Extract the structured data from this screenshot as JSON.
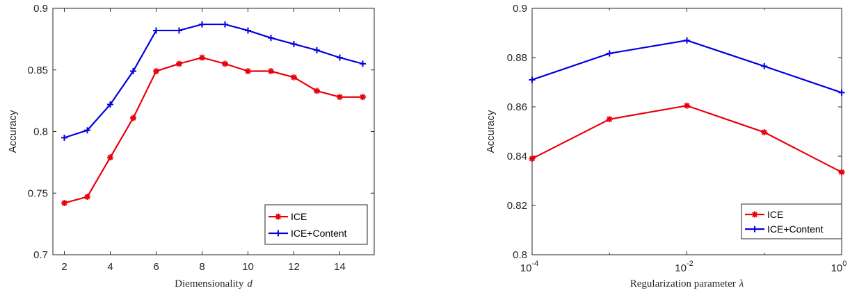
{
  "chart_data": [
    {
      "type": "line",
      "title": "",
      "xlabel": "Diemensionality",
      "xlabel_var": "d",
      "ylabel": "Accuracy",
      "x": [
        2,
        3,
        4,
        5,
        6,
        7,
        8,
        9,
        10,
        11,
        12,
        13,
        14,
        15
      ],
      "xlim": [
        1.5,
        15.5
      ],
      "ylim": [
        0.7,
        0.9
      ],
      "xticks": [
        2,
        4,
        6,
        8,
        10,
        12,
        14
      ],
      "yticks": [
        "0.7",
        "0.75",
        "0.8",
        "0.85",
        "0.9"
      ],
      "legend_position": "bottom-right",
      "grid": false,
      "series": [
        {
          "name": "ICE",
          "color": "#e8000b",
          "marker": "asterisk",
          "values": [
            0.742,
            0.747,
            0.779,
            0.811,
            0.849,
            0.855,
            0.86,
            0.855,
            0.849,
            0.849,
            0.844,
            0.833,
            0.828,
            0.828
          ]
        },
        {
          "name": "ICE+Content",
          "color": "#0000e0",
          "marker": "plus",
          "values": [
            0.795,
            0.801,
            0.822,
            0.849,
            0.882,
            0.882,
            0.887,
            0.887,
            0.882,
            0.876,
            0.871,
            0.866,
            0.86,
            0.855
          ]
        }
      ]
    },
    {
      "type": "line",
      "title": "",
      "xlabel": "Regularization parameter",
      "xlabel_var": "λ",
      "ylabel": "Accuracy",
      "xscale": "log",
      "x": [
        0.0001,
        0.001,
        0.01,
        0.1,
        1
      ],
      "xlim": [
        0.0001,
        1
      ],
      "ylim": [
        0.8,
        0.9
      ],
      "xticks": [
        {
          "base": "10",
          "exp": "-4"
        },
        {
          "base": "10",
          "exp": "-2"
        },
        {
          "base": "10",
          "exp": "0"
        }
      ],
      "yticks": [
        "0.8",
        "0.82",
        "0.84",
        "0.86",
        "0.88",
        "0.9"
      ],
      "legend_position": "bottom-right",
      "grid": false,
      "series": [
        {
          "name": "ICE",
          "color": "#e8000b",
          "marker": "asterisk",
          "values": [
            0.839,
            0.855,
            0.8605,
            0.8497,
            0.8335
          ]
        },
        {
          "name": "ICE+Content",
          "color": "#0000e0",
          "marker": "plus",
          "values": [
            0.871,
            0.8817,
            0.887,
            0.8765,
            0.8658
          ]
        }
      ]
    }
  ]
}
